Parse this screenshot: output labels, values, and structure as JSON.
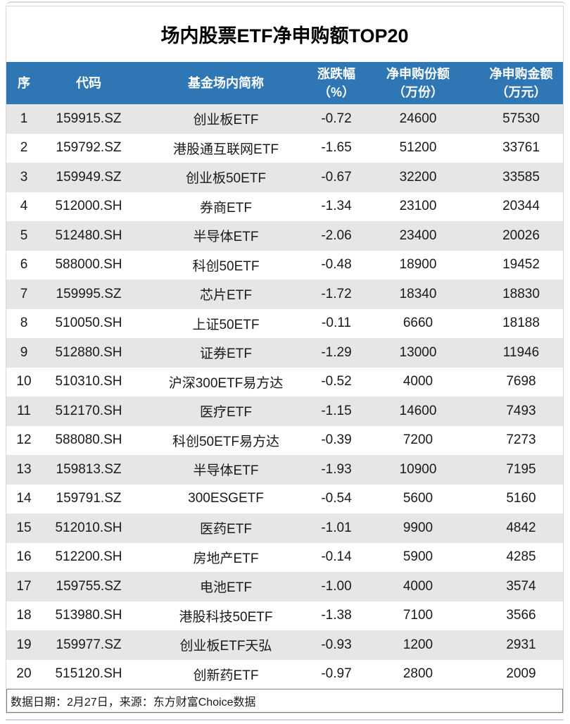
{
  "title": "场内股票ETF净申购额TOP20",
  "table": {
    "header": {
      "seq": "序",
      "code": "代码",
      "name": "基金场内简称",
      "chg_line1": "涨跌幅",
      "chg_line2": "（%）",
      "shares_line1": "净申购份额",
      "shares_line2": "（万份）",
      "amount_line1": "净申购金额",
      "amount_line2": "（万元）"
    },
    "rows": [
      {
        "seq": "1",
        "code": "159915.SZ",
        "name": "创业板ETF",
        "chg": "-0.72",
        "shares": "24600",
        "amount": "57530"
      },
      {
        "seq": "2",
        "code": "159792.SZ",
        "name": "港股通互联网ETF",
        "chg": "-1.65",
        "shares": "51200",
        "amount": "33761"
      },
      {
        "seq": "3",
        "code": "159949.SZ",
        "name": "创业板50ETF",
        "chg": "-0.67",
        "shares": "32200",
        "amount": "33585"
      },
      {
        "seq": "4",
        "code": "512000.SH",
        "name": "券商ETF",
        "chg": "-1.34",
        "shares": "23100",
        "amount": "20344"
      },
      {
        "seq": "5",
        "code": "512480.SH",
        "name": "半导体ETF",
        "chg": "-2.06",
        "shares": "23400",
        "amount": "20026"
      },
      {
        "seq": "6",
        "code": "588000.SH",
        "name": "科创50ETF",
        "chg": "-0.48",
        "shares": "18900",
        "amount": "19452"
      },
      {
        "seq": "7",
        "code": "159995.SZ",
        "name": "芯片ETF",
        "chg": "-1.72",
        "shares": "18340",
        "amount": "18830"
      },
      {
        "seq": "8",
        "code": "510050.SH",
        "name": "上证50ETF",
        "chg": "-0.11",
        "shares": "6660",
        "amount": "18188"
      },
      {
        "seq": "9",
        "code": "512880.SH",
        "name": "证券ETF",
        "chg": "-1.29",
        "shares": "13000",
        "amount": "11946"
      },
      {
        "seq": "10",
        "code": "510310.SH",
        "name": "沪深300ETF易方达",
        "chg": "-0.52",
        "shares": "4000",
        "amount": "7698"
      },
      {
        "seq": "11",
        "code": "512170.SH",
        "name": "医疗ETF",
        "chg": "-1.15",
        "shares": "14600",
        "amount": "7493"
      },
      {
        "seq": "12",
        "code": "588080.SH",
        "name": "科创50ETF易方达",
        "chg": "-0.39",
        "shares": "7200",
        "amount": "7273"
      },
      {
        "seq": "13",
        "code": "159813.SZ",
        "name": "半导体ETF",
        "chg": "-1.93",
        "shares": "10900",
        "amount": "7195"
      },
      {
        "seq": "14",
        "code": "159791.SZ",
        "name": "300ESGETF",
        "chg": "-0.54",
        "shares": "5600",
        "amount": "5160"
      },
      {
        "seq": "15",
        "code": "512010.SH",
        "name": "医药ETF",
        "chg": "-1.01",
        "shares": "9900",
        "amount": "4842"
      },
      {
        "seq": "16",
        "code": "512200.SH",
        "name": "房地产ETF",
        "chg": "-0.14",
        "shares": "5900",
        "amount": "4285"
      },
      {
        "seq": "17",
        "code": "159755.SZ",
        "name": "电池ETF",
        "chg": "-1.00",
        "shares": "4000",
        "amount": "3574"
      },
      {
        "seq": "18",
        "code": "513980.SH",
        "name": "港股科技50ETF",
        "chg": "-1.38",
        "shares": "7100",
        "amount": "3566"
      },
      {
        "seq": "19",
        "code": "159977.SZ",
        "name": "创业板ETF天弘",
        "chg": "-0.93",
        "shares": "1200",
        "amount": "2931"
      },
      {
        "seq": "20",
        "code": "515120.SH",
        "name": "创新药ETF",
        "chg": "-0.97",
        "shares": "2800",
        "amount": "2009"
      }
    ]
  },
  "footnote": "数据日期：2月27日，来源：东方财富Choice数据",
  "colors": {
    "header_bg": "#2F76B5",
    "header_text": "#FFFFFF",
    "stripe": "#E6E6E6",
    "body_text": "#1A1A1A",
    "footer_border": "#808080",
    "card_border": "#D9D9D9"
  },
  "chart_data": {
    "type": "table",
    "title": "场内股票ETF净申购额TOP20",
    "columns": [
      "序",
      "代码",
      "基金场内简称",
      "涨跌幅（%）",
      "净申购份额（万份）",
      "净申购金额（万元）"
    ],
    "rows": [
      [
        1,
        "159915.SZ",
        "创业板ETF",
        -0.72,
        24600,
        57530
      ],
      [
        2,
        "159792.SZ",
        "港股通互联网ETF",
        -1.65,
        51200,
        33761
      ],
      [
        3,
        "159949.SZ",
        "创业板50ETF",
        -0.67,
        32200,
        33585
      ],
      [
        4,
        "512000.SH",
        "券商ETF",
        -1.34,
        23100,
        20344
      ],
      [
        5,
        "512480.SH",
        "半导体ETF",
        -2.06,
        23400,
        20026
      ],
      [
        6,
        "588000.SH",
        "科创50ETF",
        -0.48,
        18900,
        19452
      ],
      [
        7,
        "159995.SZ",
        "芯片ETF",
        -1.72,
        18340,
        18830
      ],
      [
        8,
        "510050.SH",
        "上证50ETF",
        -0.11,
        6660,
        18188
      ],
      [
        9,
        "512880.SH",
        "证券ETF",
        -1.29,
        13000,
        11946
      ],
      [
        10,
        "510310.SH",
        "沪深300ETF易方达",
        -0.52,
        4000,
        7698
      ],
      [
        11,
        "512170.SH",
        "医疗ETF",
        -1.15,
        14600,
        7493
      ],
      [
        12,
        "588080.SH",
        "科创50ETF易方达",
        -0.39,
        7200,
        7273
      ],
      [
        13,
        "159813.SZ",
        "半导体ETF",
        -1.93,
        10900,
        7195
      ],
      [
        14,
        "159791.SZ",
        "300ESGETF",
        -0.54,
        5600,
        5160
      ],
      [
        15,
        "512010.SH",
        "医药ETF",
        -1.01,
        9900,
        4842
      ],
      [
        16,
        "512200.SH",
        "房地产ETF",
        -0.14,
        5900,
        4285
      ],
      [
        17,
        "159755.SZ",
        "电池ETF",
        -1.0,
        4000,
        3574
      ],
      [
        18,
        "513980.SH",
        "港股科技50ETF",
        -1.38,
        7100,
        3566
      ],
      [
        19,
        "159977.SZ",
        "创业板ETF天弘",
        -0.93,
        1200,
        2931
      ],
      [
        20,
        "515120.SH",
        "创新药ETF",
        -0.97,
        2800,
        2009
      ]
    ],
    "footnote": "数据日期：2月27日，来源：东方财富Choice数据"
  }
}
